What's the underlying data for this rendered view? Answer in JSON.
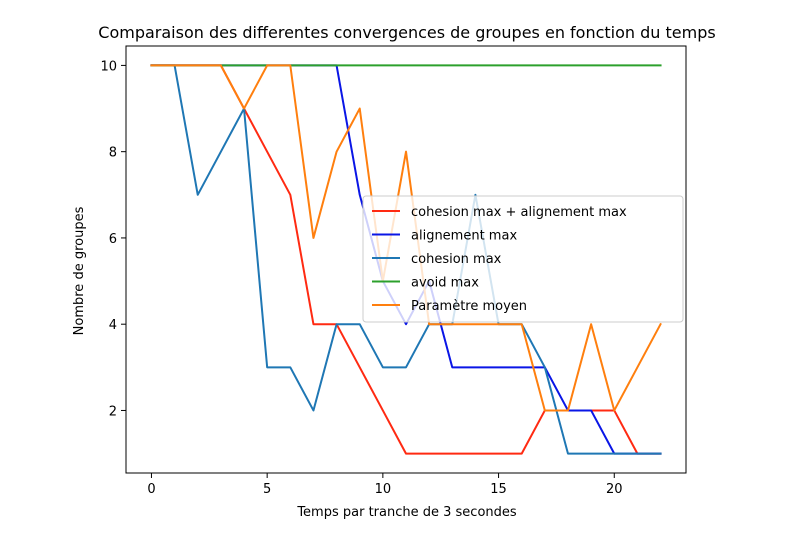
{
  "chart_data": {
    "type": "line",
    "title": "Comparaison des differentes convergences de groupes en fonction du temps",
    "xlabel": "Temps par tranche de 3 secondes",
    "ylabel": "Nombre de groupes",
    "xlim": [
      -1.1,
      23.1
    ],
    "ylim": [
      0.55,
      10.45
    ],
    "xticks": [
      0,
      5,
      10,
      15,
      20
    ],
    "yticks": [
      2,
      4,
      6,
      8,
      10
    ],
    "grid": false,
    "legend_position": "center-right",
    "x": [
      0,
      1,
      2,
      3,
      4,
      5,
      6,
      7,
      8,
      9,
      10,
      11,
      12,
      13,
      14,
      15,
      16,
      17,
      18,
      19,
      20,
      21,
      22
    ],
    "series": [
      {
        "name": "cohesion max + alignement max",
        "color": "#ff2a12",
        "values": [
          10,
          10,
          10,
          10,
          9,
          8,
          7,
          4,
          4,
          3,
          2,
          1,
          1,
          1,
          1,
          1,
          1,
          2,
          2,
          2,
          2,
          1,
          1
        ]
      },
      {
        "name": "alignement max",
        "color": "#0a16e6",
        "values": [
          10,
          10,
          10,
          10,
          10,
          10,
          10,
          10,
          10,
          7,
          5,
          4,
          5,
          3,
          3,
          3,
          3,
          3,
          2,
          2,
          1,
          1,
          1
        ]
      },
      {
        "name": "cohesion max",
        "color": "#1f77b4",
        "values": [
          10,
          10,
          7,
          8,
          9,
          3,
          3,
          2,
          4,
          4,
          3,
          3,
          4,
          4,
          7,
          4,
          4,
          3,
          1,
          1,
          1,
          1,
          1
        ]
      },
      {
        "name": "avoid max",
        "color": "#2ca02c",
        "values": [
          10,
          10,
          10,
          10,
          10,
          10,
          10,
          10,
          10,
          10,
          10,
          10,
          10,
          10,
          10,
          10,
          10,
          10,
          10,
          10,
          10,
          10,
          10
        ]
      },
      {
        "name": "Paramètre moyen",
        "color": "#ff7f0e",
        "values": [
          10,
          10,
          10,
          10,
          9,
          10,
          10,
          6,
          8,
          9,
          5,
          8,
          4,
          4,
          4,
          4,
          4,
          2,
          2,
          4,
          2,
          3,
          4
        ]
      }
    ]
  }
}
